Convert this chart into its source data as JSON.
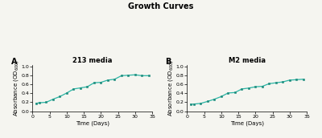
{
  "title": "Growth Curves",
  "panel_A_title": "213 media",
  "panel_B_title": "M2 media",
  "xlabel": "Time (Days)",
  "ylabel_A": "Absorbance (OD$_{600}$)",
  "ylabel_B": "Absorbance (OD$_{600}$)",
  "panel_label_A": "A",
  "panel_label_B": "B",
  "xlim": [
    0,
    35
  ],
  "ylim": [
    0.0,
    1.05
  ],
  "xticks": [
    0,
    5,
    10,
    15,
    20,
    25,
    30,
    35
  ],
  "yticks": [
    0.0,
    0.2,
    0.4,
    0.6,
    0.8,
    1.0
  ],
  "line_color": "#2ab5a5",
  "marker_color": "#1a8a7a",
  "background_color": "#f5f5f0",
  "days_A": [
    1,
    2,
    4,
    6,
    8,
    10,
    12,
    14,
    16,
    18,
    20,
    22,
    24,
    26,
    28,
    30,
    32,
    34
  ],
  "od_A": [
    0.175,
    0.19,
    0.2,
    0.27,
    0.33,
    0.41,
    0.5,
    0.525,
    0.55,
    0.64,
    0.65,
    0.7,
    0.72,
    0.8,
    0.81,
    0.82,
    0.8,
    0.8
  ],
  "days_B": [
    1,
    2,
    4,
    6,
    8,
    10,
    12,
    14,
    16,
    18,
    20,
    22,
    24,
    26,
    28,
    30,
    32,
    34
  ],
  "od_B": [
    0.155,
    0.16,
    0.175,
    0.22,
    0.27,
    0.33,
    0.41,
    0.42,
    0.5,
    0.52,
    0.55,
    0.56,
    0.62,
    0.64,
    0.66,
    0.7,
    0.71,
    0.72
  ],
  "title_fontsize": 7,
  "subtitle_fontsize": 6,
  "axis_label_fontsize": 5,
  "tick_fontsize": 4.5,
  "panel_label_fontsize": 7
}
